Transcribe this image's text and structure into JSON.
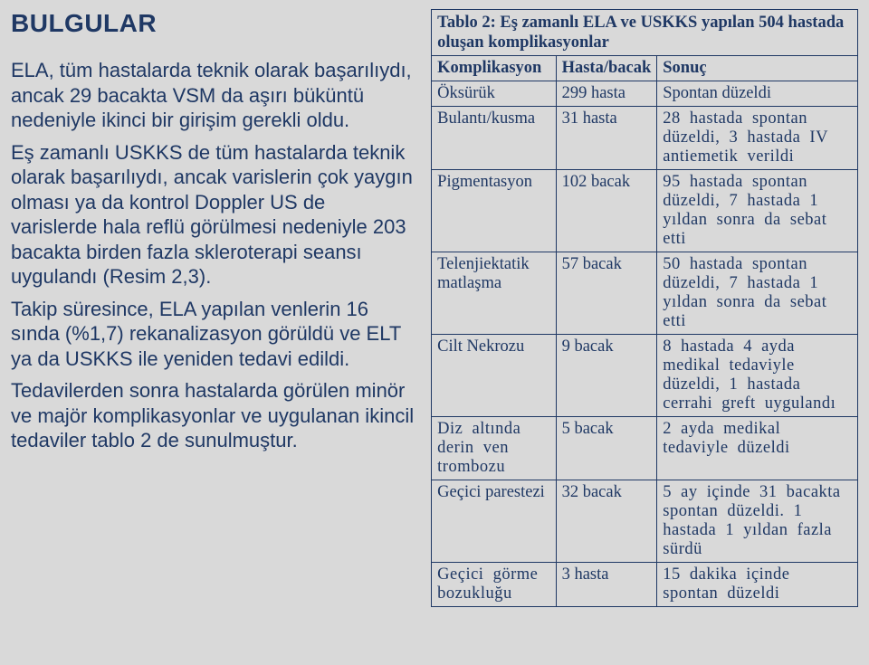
{
  "left": {
    "heading": "BULGULAR",
    "p1": "ELA, tüm hastalarda teknik olarak başarılıydı, ancak 29 bacakta VSM da aşırı büküntü nedeniyle ikinci bir girişim gerekli oldu.",
    "p2": "Eş zamanlı USKKS de tüm hastalarda teknik olarak başarılıydı, ancak varislerin çok yaygın olması ya da kontrol Doppler US de varislerde hala reflü görülmesi nedeniyle 203 bacakta birden fazla skleroterapi seansı uygulandı (Resim 2,3).",
    "p3": "Takip süresince, ELA yapılan venlerin 16 sında (%1,7) rekanalizasyon görüldü ve ELT ya da USKKS ile yeniden tedavi edildi.",
    "p4": "Tedavilerden sonra hastalarda görülen minör ve majör komplikasyonlar ve uygulanan ikincil tedaviler tablo 2 de sunulmuştur."
  },
  "table": {
    "caption": "Tablo 2: Eş zamanlı ELA ve USKKS yapılan 504 hastada oluşan komplikasyonlar",
    "headers": {
      "c1": "Komplikasyon",
      "c2": "Hasta/bacak",
      "c3": "Sonuç"
    },
    "rows": [
      {
        "c1": "Öksürük",
        "c2": "299 hasta",
        "c3": "Spontan düzeldi",
        "justify": false
      },
      {
        "c1": "Bulantı/kusma",
        "c2": "31 hasta",
        "c3": "28 hastada spontan düzeldi, 3 hastada IV antiemetik verildi",
        "justify": true
      },
      {
        "c1": "Pigmentasyon",
        "c2": "102 bacak",
        "c3": "95 hastada spontan düzeldi, 7 hastada 1 yıldan sonra da sebat etti",
        "justify": true
      },
      {
        "c1": "Telenjiektatik matlaşma",
        "c2": "57 bacak",
        "c3": "50 hastada spontan düzeldi, 7 hastada 1 yıldan sonra da sebat etti",
        "justify": true
      },
      {
        "c1": "Cilt Nekrozu",
        "c2": "9 bacak",
        "c3": "8 hastada 4 ayda medikal tedaviyle düzeldi, 1 hastada cerrahi greft uygulandı",
        "justify": true
      },
      {
        "c1": "Diz altında derin ven trombozu",
        "c2": "5 bacak",
        "c3": "2 ayda medikal tedaviyle düzeldi",
        "justify": true,
        "c1justify": true
      },
      {
        "c1": "Geçici parestezi",
        "c2": "32 bacak",
        "c3": "5 ay içinde 31 bacakta spontan düzeldi. 1 hastada 1 yıldan fazla sürdü",
        "justify": true
      },
      {
        "c1": "Geçici görme bozukluğu",
        "c2": "3 hasta",
        "c3": "15 dakika içinde spontan düzeldi",
        "justify": true,
        "c1justify": true
      }
    ]
  },
  "colors": {
    "background": "#d9d9d9",
    "text": "#1f3864",
    "border": "#1f3864"
  }
}
